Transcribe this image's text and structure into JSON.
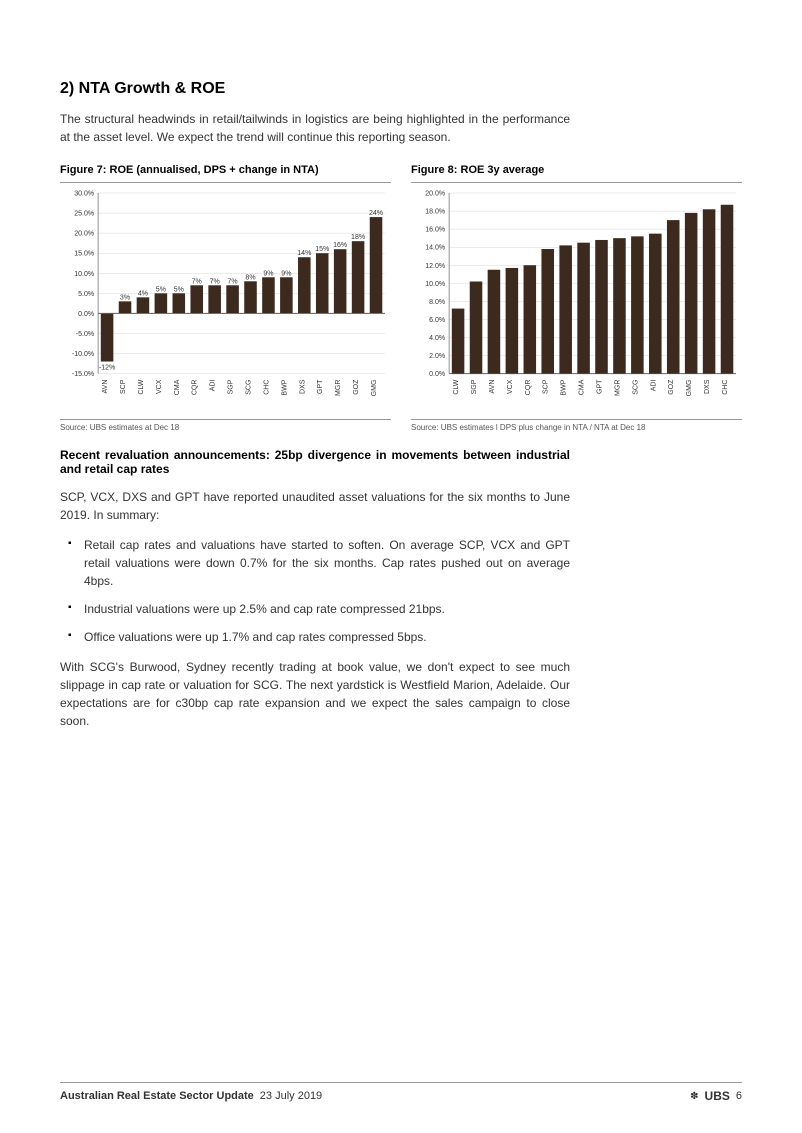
{
  "heading": "2) NTA Growth & ROE",
  "intro": "The structural headwinds in retail/tailwinds in logistics are being highlighted in the performance at the asset level. We expect the trend will continue this reporting season.",
  "figure7": {
    "title": "Figure 7: ROE (annualised, DPS + change in NTA)",
    "type": "bar",
    "categories": [
      "AVN",
      "SCP",
      "CLW",
      "VCX",
      "CMA",
      "CQR",
      "ADI",
      "SGP",
      "SCG",
      "CHC",
      "BWP",
      "DXS",
      "GPT",
      "MGR",
      "GOZ",
      "GMG"
    ],
    "values": [
      -12,
      3,
      4,
      5,
      5,
      7,
      7,
      7,
      8,
      9,
      9,
      14,
      15,
      16,
      18,
      24
    ],
    "value_labels": [
      "-12%",
      "3%",
      "4%",
      "5%",
      "5%",
      "7%",
      "7%",
      "7%",
      "8%",
      "9%",
      "9%",
      "14%",
      "15%",
      "16%",
      "18%",
      "24%"
    ],
    "ylim": [
      -15,
      30
    ],
    "ytick_step": 5,
    "ytick_format": "percent",
    "bar_color": "#3d2a1f",
    "grid_color": "#d9d9d9",
    "axis_color": "#666666",
    "label_fontsize": 7,
    "tick_fontsize": 7,
    "background_color": "#ffffff",
    "source": "Source:  UBS estimates at Dec 18"
  },
  "figure8": {
    "title": "Figure 8: ROE 3y average",
    "type": "bar",
    "categories": [
      "CLW",
      "SGP",
      "AVN",
      "VCX",
      "CQR",
      "SCP",
      "BWP",
      "CMA",
      "GPT",
      "MGR",
      "SCG",
      "ADI",
      "GOZ",
      "GMG",
      "DXS",
      "CHC"
    ],
    "values": [
      7.2,
      10.2,
      11.5,
      11.7,
      12.0,
      13.8,
      14.2,
      14.5,
      14.8,
      15.0,
      15.2,
      15.5,
      17.0,
      17.8,
      18.2,
      18.7
    ],
    "ylim": [
      0,
      20
    ],
    "ytick_step": 2,
    "ytick_format": "percent",
    "bar_color": "#3d2a1f",
    "grid_color": "#d9d9d9",
    "axis_color": "#666666",
    "label_fontsize": 7,
    "tick_fontsize": 7,
    "background_color": "#ffffff",
    "source": "Source: UBS estimates l DPS plus change in NTA / NTA at Dec 18"
  },
  "sub_heading": "Recent revaluation announcements: 25bp divergence in movements between industrial and retail cap rates",
  "para1": "SCP, VCX, DXS and GPT have reported unaudited asset valuations for the six months to June 2019. In summary:",
  "bullets": [
    "Retail cap rates and valuations have started to soften. On average SCP, VCX and GPT retail valuations were down 0.7% for the six months. Cap rates pushed out on average 4bps.",
    "Industrial valuations were up 2.5% and cap rate compressed 21bps.",
    "Office valuations were up 1.7% and cap rates compressed 5bps."
  ],
  "para2": "With SCG's Burwood, Sydney recently trading at book value, we don't expect to see much slippage in cap rate or valuation for SCG. The next yardstick is Westfield Marion, Adelaide. Our expectations are for c30bp cap rate expansion and we expect the sales campaign to close soon.",
  "footer": {
    "title": "Australian Real Estate Sector Update",
    "date": "23 July 2019",
    "brand": "UBS",
    "page": "6"
  }
}
